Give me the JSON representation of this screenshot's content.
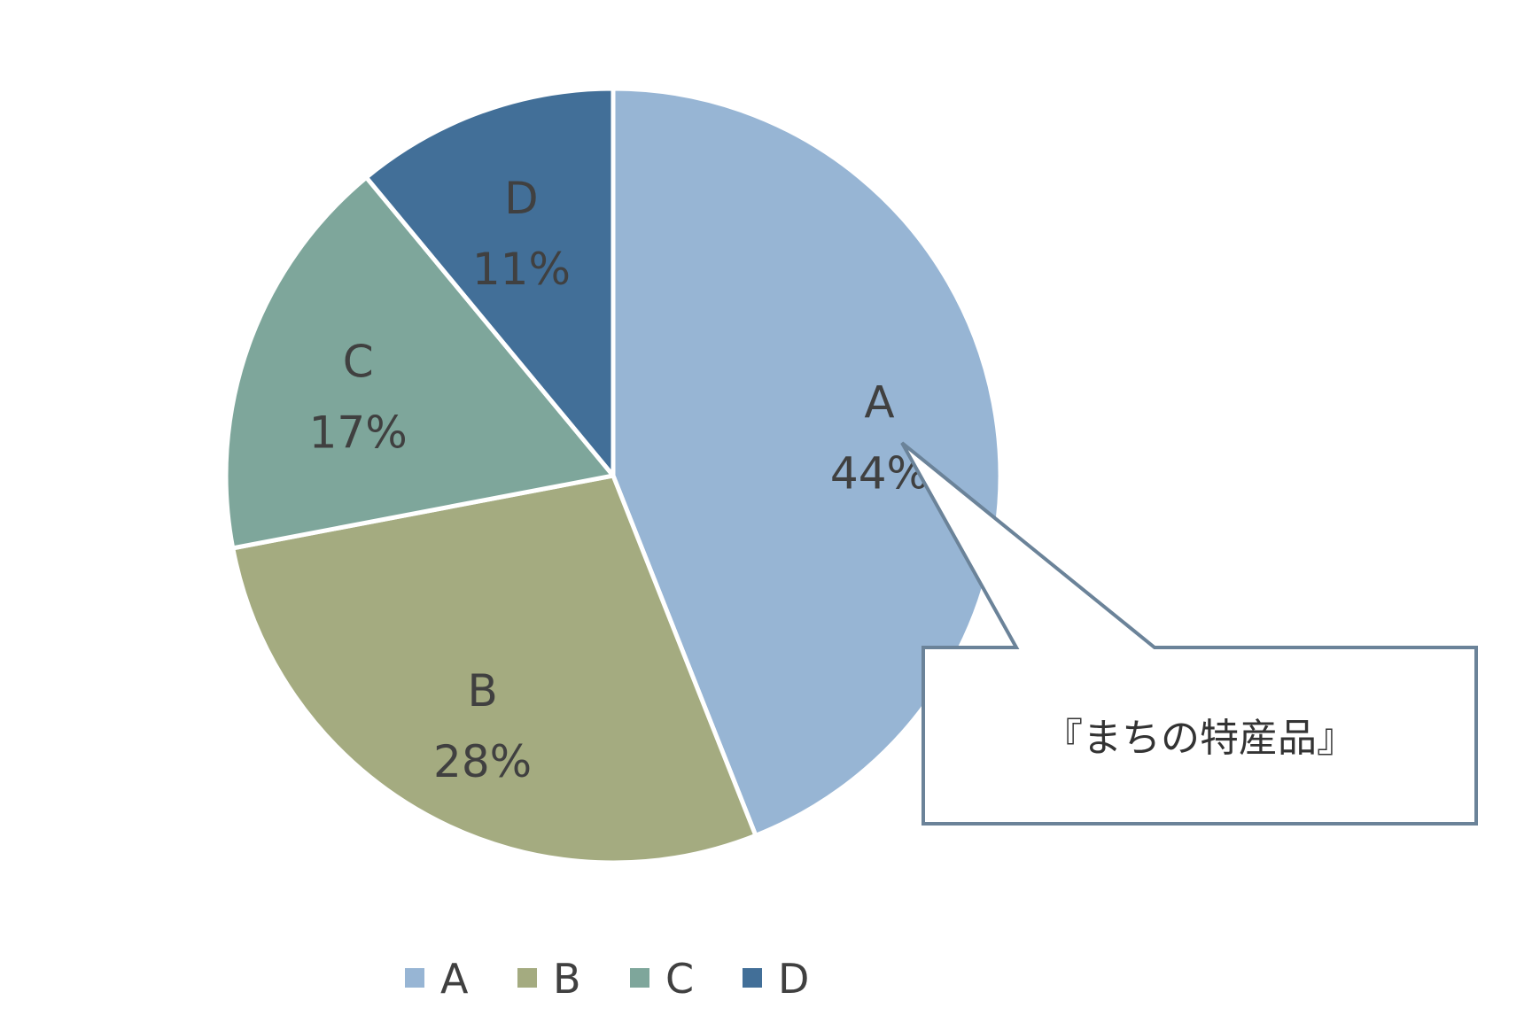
{
  "chart_data": {
    "type": "pie",
    "title": "",
    "categories": [
      "A",
      "B",
      "C",
      "D"
    ],
    "values": [
      44,
      28,
      17,
      11
    ],
    "value_labels": [
      "44%",
      "28%",
      "17%",
      "11%"
    ],
    "colors": [
      "#97B5D4",
      "#A4AB80",
      "#7EA69B",
      "#426F98"
    ],
    "start_angle_deg": 0,
    "direction": "clockwise",
    "legend": {
      "position": "bottom",
      "entries": [
        "A",
        "B",
        "C",
        "D"
      ]
    },
    "annotations": [
      {
        "type": "callout",
        "text": "『まちの特産品』",
        "target": "A"
      }
    ]
  }
}
